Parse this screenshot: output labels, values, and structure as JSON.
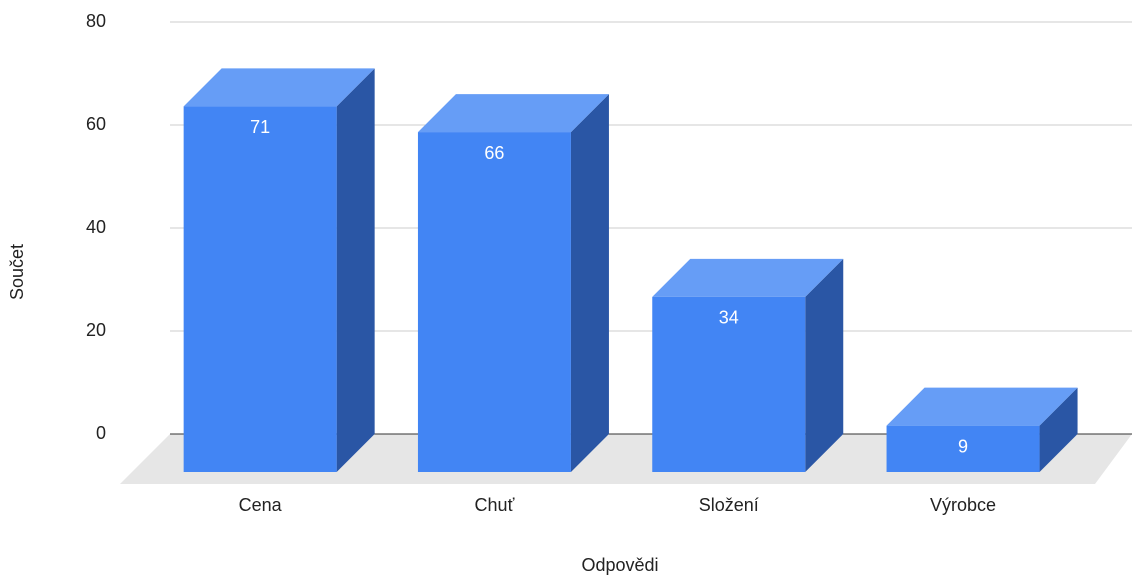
{
  "chart_data": {
    "type": "bar3d",
    "x_label": "Odpovědi",
    "y_label": "Součet",
    "categories": [
      "Cena",
      "Chuť",
      "Složení",
      "Výrobce"
    ],
    "values": [
      71,
      66,
      34,
      9
    ],
    "color": "#4285f4",
    "top_color": "#669df6",
    "side_color": "#2a56a5",
    "ylim": [
      0,
      80
    ],
    "yticks": [
      0,
      20,
      40,
      60,
      80
    ],
    "grid": true
  }
}
